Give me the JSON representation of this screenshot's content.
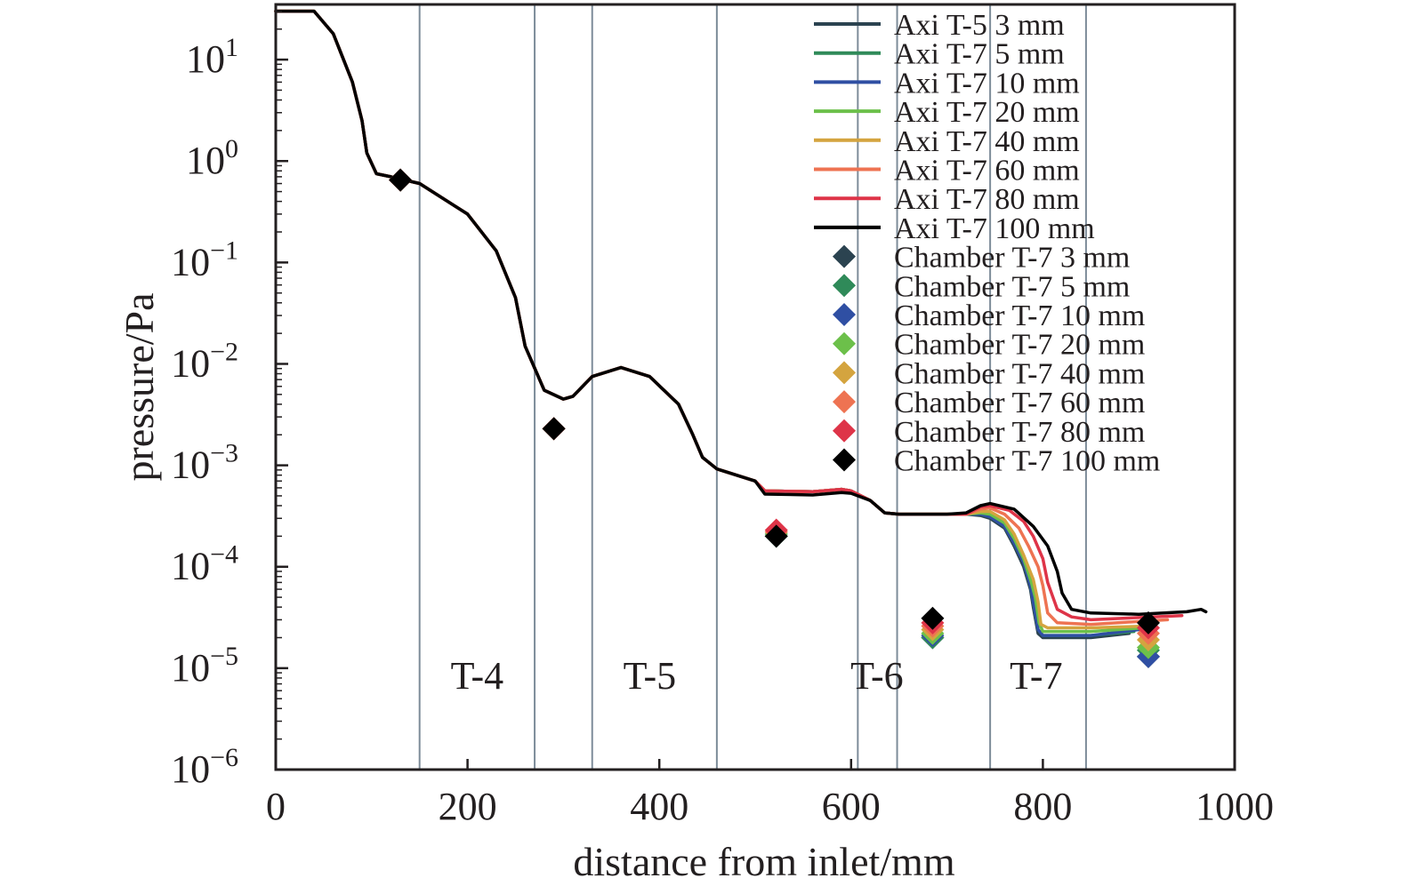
{
  "chart_data": {
    "type": "line",
    "xlabel": "distance from inlet/mm",
    "ylabel": "pressure/Pa",
    "xlim": [
      0,
      1000
    ],
    "ylim": [
      1e-06,
      35
    ],
    "yscale": "log",
    "grid": false,
    "legend_position": "top-right",
    "x_ticks": [
      {
        "value": 0,
        "label": "0"
      },
      {
        "value": 200,
        "label": "200"
      },
      {
        "value": 400,
        "label": "400"
      },
      {
        "value": 600,
        "label": "600"
      },
      {
        "value": 800,
        "label": "800"
      },
      {
        "value": 1000,
        "label": "1000"
      }
    ],
    "y_ticks": [
      {
        "value": 10,
        "base": "10",
        "exp": "1"
      },
      {
        "value": 1,
        "base": "10",
        "exp": "0"
      },
      {
        "value": 0.1,
        "base": "10",
        "exp": "−1"
      },
      {
        "value": 0.01,
        "base": "10",
        "exp": "−2"
      },
      {
        "value": 0.001,
        "base": "10",
        "exp": "−3"
      },
      {
        "value": 0.0001,
        "base": "10",
        "exp": "−4"
      },
      {
        "value": 1e-05,
        "base": "10",
        "exp": "−5"
      },
      {
        "value": 1e-06,
        "base": "10",
        "exp": "−6"
      }
    ],
    "region_boundaries": [
      150,
      270,
      330,
      460,
      607,
      648,
      745,
      845
    ],
    "boundary_color": "#7d8c99",
    "regions": [
      {
        "label": "T-4",
        "x": 210
      },
      {
        "label": "T-5",
        "x": 390
      },
      {
        "label": "T-6",
        "x": 627
      },
      {
        "label": "T-7",
        "x": 793
      }
    ],
    "series": [
      {
        "name": "Axi T-5 3 mm",
        "color": "#2b4350",
        "kind": "line",
        "x": [
          0,
          40,
          60,
          80,
          90,
          95,
          105,
          120,
          150,
          200,
          230,
          250,
          260,
          280,
          300,
          310,
          330,
          360,
          390,
          420,
          435,
          445,
          460,
          500,
          510,
          560,
          590,
          600,
          620,
          635,
          650,
          700,
          720,
          735,
          745,
          760,
          770,
          780,
          787,
          790,
          795,
          800,
          850,
          890
        ],
        "y": [
          30,
          30,
          18,
          6,
          2.5,
          1.2,
          0.75,
          0.7,
          0.6,
          0.3,
          0.13,
          0.045,
          0.015,
          0.0055,
          0.0045,
          0.0048,
          0.0075,
          0.0092,
          0.0075,
          0.004,
          0.002,
          0.0012,
          0.00092,
          0.0007,
          0.00056,
          0.00055,
          0.00058,
          0.00056,
          0.00045,
          0.00034,
          0.00033,
          0.00033,
          0.00033,
          0.00032,
          0.0003,
          0.00024,
          0.00016,
          0.0001,
          6e-05,
          4e-05,
          2.2e-05,
          2e-05,
          2e-05,
          2.2e-05
        ]
      },
      {
        "name": "Axi T-7 5 mm",
        "color": "#2f8a59",
        "kind": "line",
        "x": [
          0,
          40,
          60,
          80,
          90,
          95,
          105,
          120,
          150,
          200,
          230,
          250,
          260,
          280,
          300,
          310,
          330,
          360,
          390,
          420,
          435,
          445,
          460,
          500,
          510,
          560,
          590,
          600,
          620,
          635,
          650,
          700,
          720,
          735,
          745,
          760,
          770,
          780,
          787,
          790,
          795,
          800,
          850,
          895
        ],
        "y": [
          30,
          30,
          18,
          6,
          2.5,
          1.2,
          0.75,
          0.7,
          0.6,
          0.3,
          0.13,
          0.045,
          0.015,
          0.0055,
          0.0045,
          0.0048,
          0.0075,
          0.0092,
          0.0075,
          0.004,
          0.002,
          0.0012,
          0.00092,
          0.0007,
          0.00056,
          0.00055,
          0.00058,
          0.00056,
          0.00045,
          0.00034,
          0.00033,
          0.00033,
          0.00033,
          0.00033,
          0.00031,
          0.00025,
          0.00017,
          0.00011,
          6.5e-05,
          4.5e-05,
          2.4e-05,
          2.1e-05,
          2.1e-05,
          2.3e-05
        ]
      },
      {
        "name": "Axi T-7 10 mm",
        "color": "#2f4fa3",
        "kind": "line",
        "x": [
          0,
          40,
          60,
          80,
          90,
          95,
          105,
          120,
          150,
          200,
          230,
          250,
          260,
          280,
          300,
          310,
          330,
          360,
          390,
          420,
          435,
          445,
          460,
          500,
          510,
          560,
          590,
          600,
          620,
          635,
          650,
          700,
          720,
          735,
          745,
          760,
          770,
          780,
          787,
          790,
          795,
          800,
          850,
          900
        ],
        "y": [
          30,
          30,
          18,
          6,
          2.5,
          1.2,
          0.75,
          0.7,
          0.6,
          0.3,
          0.13,
          0.045,
          0.015,
          0.0055,
          0.0045,
          0.0048,
          0.0075,
          0.0092,
          0.0075,
          0.004,
          0.002,
          0.0012,
          0.00092,
          0.0007,
          0.00056,
          0.00055,
          0.00058,
          0.00056,
          0.00045,
          0.00034,
          0.00033,
          0.00033,
          0.00033,
          0.00033,
          0.00031,
          0.00025,
          0.00017,
          0.00011,
          6.5e-05,
          4.5e-05,
          2.4e-05,
          2.1e-05,
          2.1e-05,
          2.4e-05
        ]
      },
      {
        "name": "Axi T-7 20 mm",
        "color": "#6cc04a",
        "kind": "line",
        "x": [
          0,
          40,
          60,
          80,
          90,
          95,
          105,
          120,
          150,
          200,
          230,
          250,
          260,
          280,
          300,
          310,
          330,
          360,
          390,
          420,
          435,
          445,
          460,
          500,
          510,
          560,
          590,
          600,
          620,
          635,
          650,
          700,
          720,
          735,
          745,
          760,
          770,
          780,
          788,
          792,
          796,
          800,
          850,
          905
        ],
        "y": [
          30,
          30,
          18,
          6,
          2.5,
          1.2,
          0.75,
          0.7,
          0.6,
          0.3,
          0.13,
          0.045,
          0.015,
          0.0055,
          0.0045,
          0.0048,
          0.0075,
          0.0092,
          0.0075,
          0.004,
          0.002,
          0.0012,
          0.00092,
          0.0007,
          0.00056,
          0.00055,
          0.00058,
          0.00056,
          0.00045,
          0.00034,
          0.00033,
          0.00033,
          0.00033,
          0.00034,
          0.00033,
          0.00027,
          0.00019,
          0.00012,
          7e-05,
          5e-05,
          2.8e-05,
          2.3e-05,
          2.3e-05,
          2.5e-05
        ]
      },
      {
        "name": "Axi T-7 40 mm",
        "color": "#d4a43f",
        "kind": "line",
        "x": [
          0,
          40,
          60,
          80,
          90,
          95,
          105,
          120,
          150,
          200,
          230,
          250,
          260,
          280,
          300,
          310,
          330,
          360,
          390,
          420,
          435,
          445,
          460,
          500,
          510,
          560,
          590,
          600,
          620,
          635,
          650,
          700,
          720,
          735,
          745,
          760,
          770,
          780,
          790,
          795,
          798,
          805,
          850,
          910
        ],
        "y": [
          30,
          30,
          18,
          6,
          2.5,
          1.2,
          0.75,
          0.7,
          0.6,
          0.3,
          0.13,
          0.045,
          0.015,
          0.0055,
          0.0045,
          0.0048,
          0.0075,
          0.0092,
          0.0075,
          0.004,
          0.002,
          0.0012,
          0.00092,
          0.0007,
          0.00056,
          0.00055,
          0.00058,
          0.00056,
          0.00045,
          0.00034,
          0.00033,
          0.00033,
          0.00033,
          0.00035,
          0.00035,
          0.00029,
          0.00021,
          0.00013,
          7.5e-05,
          4.5e-05,
          2.7e-05,
          2.5e-05,
          2.5e-05,
          2.6e-05
        ]
      },
      {
        "name": "Axi T-7 60 mm",
        "color": "#ee7352",
        "kind": "line",
        "x": [
          0,
          40,
          60,
          80,
          90,
          95,
          105,
          120,
          150,
          200,
          230,
          250,
          260,
          280,
          300,
          310,
          330,
          360,
          390,
          420,
          435,
          445,
          460,
          500,
          510,
          560,
          590,
          600,
          620,
          635,
          650,
          700,
          720,
          735,
          745,
          760,
          775,
          785,
          795,
          800,
          805,
          815,
          850,
          930
        ],
        "y": [
          30,
          30,
          18,
          6,
          2.5,
          1.2,
          0.75,
          0.7,
          0.6,
          0.3,
          0.13,
          0.045,
          0.015,
          0.0055,
          0.0045,
          0.0048,
          0.0075,
          0.0092,
          0.0075,
          0.004,
          0.002,
          0.0012,
          0.00092,
          0.0007,
          0.00056,
          0.00055,
          0.00058,
          0.00056,
          0.00045,
          0.00034,
          0.00033,
          0.00033,
          0.00033,
          0.00037,
          0.00038,
          0.00033,
          0.00024,
          0.00016,
          0.0001,
          6.5e-05,
          3.5e-05,
          2.8e-05,
          2.7e-05,
          3e-05
        ]
      },
      {
        "name": "Axi T-7 80 mm",
        "color": "#de3448",
        "kind": "line",
        "x": [
          0,
          40,
          60,
          80,
          90,
          95,
          105,
          120,
          150,
          200,
          230,
          250,
          260,
          280,
          300,
          310,
          330,
          360,
          390,
          420,
          435,
          445,
          460,
          500,
          510,
          560,
          590,
          600,
          620,
          635,
          650,
          700,
          720,
          735,
          745,
          765,
          780,
          790,
          800,
          805,
          815,
          830,
          850,
          945
        ],
        "y": [
          30,
          30,
          18,
          6,
          2.5,
          1.2,
          0.75,
          0.7,
          0.6,
          0.3,
          0.13,
          0.045,
          0.015,
          0.0055,
          0.0045,
          0.0048,
          0.0075,
          0.0092,
          0.0075,
          0.004,
          0.002,
          0.0012,
          0.00092,
          0.0007,
          0.00056,
          0.00055,
          0.00058,
          0.00056,
          0.00045,
          0.00034,
          0.00033,
          0.00033,
          0.00033,
          0.00039,
          0.0004,
          0.00036,
          0.00028,
          0.0002,
          0.00012,
          7e-05,
          3.8e-05,
          3.2e-05,
          3e-05,
          3.3e-05
        ]
      },
      {
        "name": "Axi T-7 100 mm",
        "color": "#000000",
        "kind": "line",
        "x": [
          0,
          40,
          60,
          80,
          90,
          95,
          105,
          120,
          150,
          200,
          230,
          250,
          260,
          280,
          300,
          310,
          330,
          360,
          390,
          420,
          435,
          445,
          460,
          500,
          510,
          560,
          590,
          600,
          620,
          635,
          650,
          700,
          720,
          735,
          745,
          770,
          790,
          805,
          815,
          820,
          830,
          850,
          900,
          950,
          965,
          970
        ],
        "y": [
          30,
          30,
          18,
          6,
          2.5,
          1.2,
          0.75,
          0.7,
          0.6,
          0.3,
          0.13,
          0.045,
          0.015,
          0.0055,
          0.0045,
          0.0048,
          0.0075,
          0.0092,
          0.0075,
          0.004,
          0.002,
          0.0012,
          0.00092,
          0.0007,
          0.00052,
          0.00051,
          0.00054,
          0.00053,
          0.00045,
          0.00034,
          0.00033,
          0.00033,
          0.00034,
          0.0004,
          0.00042,
          0.00037,
          0.00025,
          0.00016,
          9e-05,
          5.5e-05,
          3.8e-05,
          3.5e-05,
          3.4e-05,
          3.6e-05,
          3.8e-05,
          3.6e-05
        ]
      },
      {
        "name": "Chamber T-7 3 mm",
        "color": "#2b4350",
        "kind": "marker",
        "x": [
          130,
          290,
          522,
          685,
          910
        ],
        "y": [
          0.65,
          0.0023,
          0.0002,
          2e-05,
          1.3e-05
        ]
      },
      {
        "name": "Chamber T-7 5 mm",
        "color": "#2f8a59",
        "kind": "marker",
        "x": [
          130,
          290,
          522,
          685,
          910
        ],
        "y": [
          0.65,
          0.0023,
          0.0002,
          2e-05,
          1.5e-05
        ]
      },
      {
        "name": "Chamber T-7 10 mm",
        "color": "#2f4fa3",
        "kind": "marker",
        "x": [
          130,
          290,
          522,
          685,
          910
        ],
        "y": [
          0.65,
          0.0023,
          0.00021,
          2.1e-05,
          1.3e-05
        ]
      },
      {
        "name": "Chamber T-7 20 mm",
        "color": "#6cc04a",
        "kind": "marker",
        "x": [
          130,
          290,
          522,
          685,
          910
        ],
        "y": [
          0.65,
          0.0023,
          0.00021,
          2.2e-05,
          1.6e-05
        ]
      },
      {
        "name": "Chamber T-7 40 mm",
        "color": "#d4a43f",
        "kind": "marker",
        "x": [
          130,
          290,
          522,
          685,
          910
        ],
        "y": [
          0.65,
          0.0023,
          0.00022,
          2.4e-05,
          1.9e-05
        ]
      },
      {
        "name": "Chamber T-7 60 mm",
        "color": "#ee7352",
        "kind": "marker",
        "x": [
          130,
          290,
          522,
          685,
          910
        ],
        "y": [
          0.65,
          0.0023,
          0.00022,
          2.6e-05,
          2.2e-05
        ]
      },
      {
        "name": "Chamber T-7 80 mm",
        "color": "#de3448",
        "kind": "marker",
        "x": [
          130,
          290,
          522,
          685,
          910
        ],
        "y": [
          0.65,
          0.0023,
          0.00023,
          2.8e-05,
          2.5e-05
        ]
      },
      {
        "name": "Chamber T-7 100 mm",
        "color": "#000000",
        "kind": "marker",
        "x": [
          130,
          290,
          522,
          685,
          910
        ],
        "y": [
          0.65,
          0.0023,
          0.0002,
          3.1e-05,
          2.8e-05
        ]
      }
    ]
  }
}
